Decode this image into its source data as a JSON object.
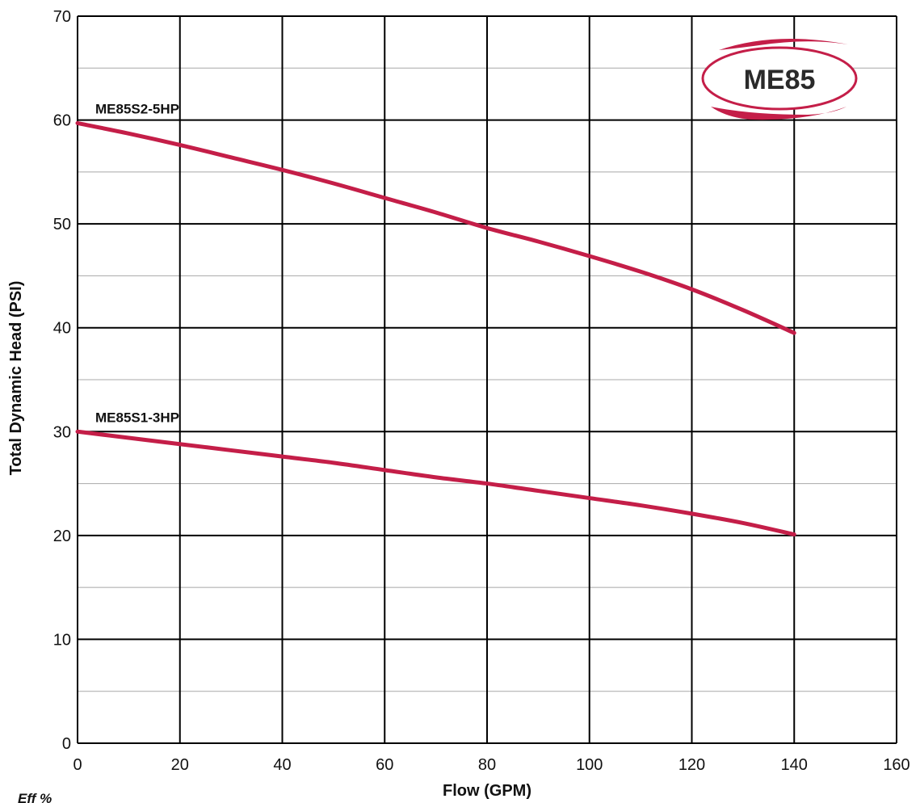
{
  "chart_data": {
    "type": "line",
    "title": "",
    "xlabel": "Flow (GPM)",
    "ylabel": "Total Dynamic Head (PSI)",
    "xlim": [
      0,
      160
    ],
    "ylim": [
      0,
      70
    ],
    "x_ticks": [
      0,
      20,
      40,
      60,
      80,
      100,
      120,
      140,
      160
    ],
    "y_ticks": [
      0,
      10,
      20,
      30,
      40,
      50,
      60,
      70
    ],
    "grid": true,
    "legend": "none",
    "line_color": "#c41e48",
    "series": [
      {
        "name": "ME85S2-5HP",
        "points": [
          [
            0,
            59.7
          ],
          [
            10,
            58.7
          ],
          [
            20,
            57.6
          ],
          [
            30,
            56.4
          ],
          [
            40,
            55.2
          ],
          [
            50,
            53.9
          ],
          [
            60,
            52.5
          ],
          [
            70,
            51.1
          ],
          [
            80,
            49.6
          ],
          [
            90,
            48.3
          ],
          [
            100,
            46.9
          ],
          [
            110,
            45.4
          ],
          [
            120,
            43.7
          ],
          [
            130,
            41.7
          ],
          [
            140,
            39.5
          ]
        ]
      },
      {
        "name": "ME85S1-3HP",
        "points": [
          [
            0,
            30.0
          ],
          [
            10,
            29.4
          ],
          [
            20,
            28.8
          ],
          [
            30,
            28.2
          ],
          [
            40,
            27.6
          ],
          [
            50,
            27.0
          ],
          [
            60,
            26.3
          ],
          [
            70,
            25.6
          ],
          [
            80,
            25.0
          ],
          [
            90,
            24.3
          ],
          [
            100,
            23.6
          ],
          [
            110,
            22.9
          ],
          [
            120,
            22.1
          ],
          [
            130,
            21.2
          ],
          [
            140,
            20.1
          ]
        ]
      }
    ]
  },
  "badge": {
    "label": "ME85",
    "color": "#c41e48"
  },
  "footer": {
    "text": "Eff %"
  }
}
